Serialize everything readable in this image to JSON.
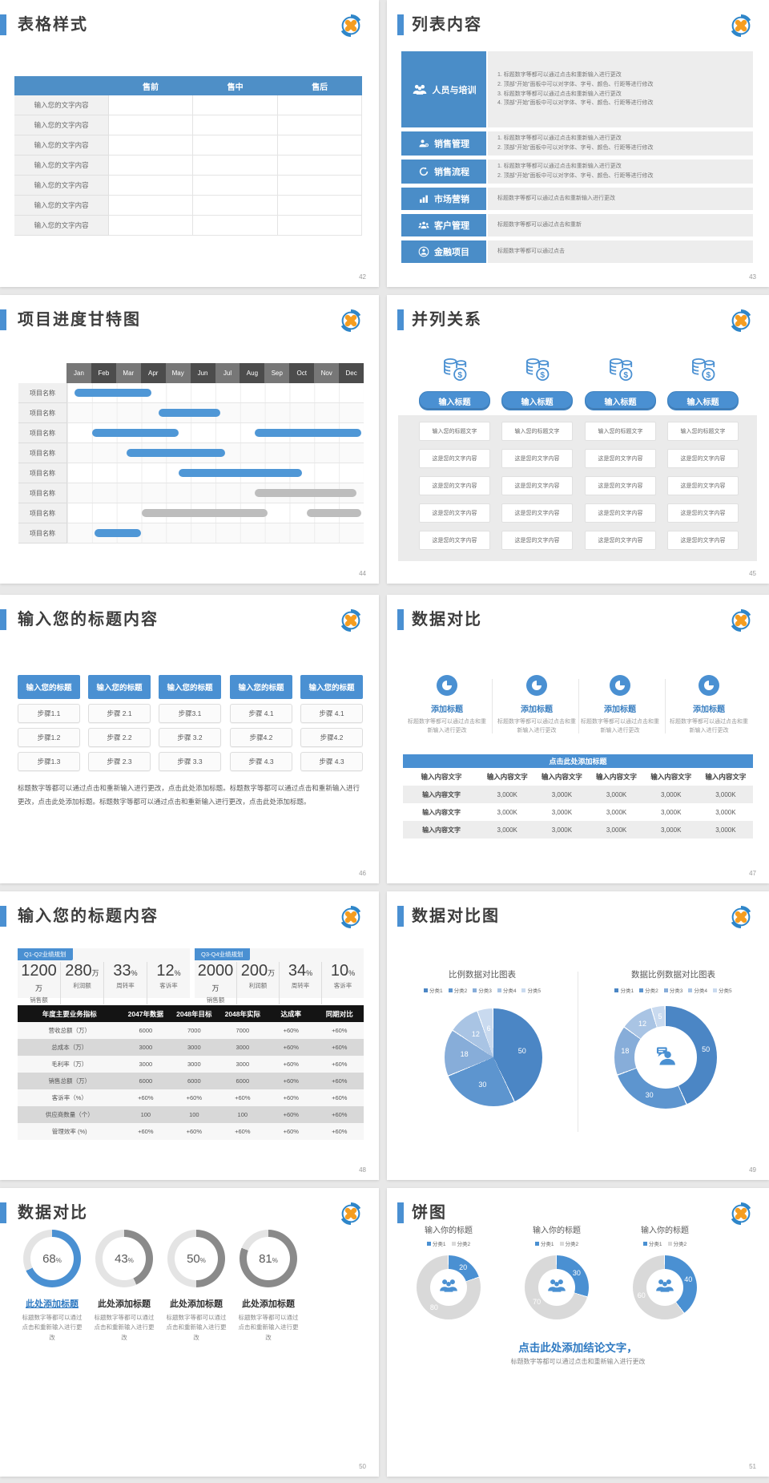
{
  "colors": {
    "accent": "#4a90d2",
    "table_header_blue": "#4e8fc7",
    "bar_blue": "#4f97d6",
    "bar_gray": "#bdbdbd",
    "gauge_gray": "#8a8a8a",
    "gauge_track": "#e4e4e4",
    "donut_gray": "#d9d9d9",
    "pie_palette": [
      "#4b86c5",
      "#5d95cf",
      "#87add9",
      "#a9c4e4",
      "#c9daef"
    ]
  },
  "slides": {
    "s42": {
      "title": "表格样式",
      "page": "42",
      "table": {
        "headers": [
          "",
          "售前",
          "售中",
          "售后"
        ],
        "row_label": "输入您的文字内容",
        "row_count": 7
      }
    },
    "s43": {
      "title": "列表内容",
      "page": "43",
      "items": [
        {
          "icon": "team-icon",
          "label": "人员与培训",
          "numbered": true,
          "lines": [
            "标题数字等都可以通过点击和重新输入进行更改",
            "顶部“开始”面板中可以对字体、字号、颜色、行距等进行修改",
            "标题数字等都可以通过点击和重新输入进行更改",
            "顶部“开始”面板中可以对字体、字号、颜色、行距等进行修改"
          ]
        },
        {
          "icon": "sales-management-icon",
          "label": "销售管理",
          "numbered": true,
          "lines": [
            "标题数字等都可以通过点击和重新输入进行更改",
            "顶部“开始”面板中可以对字体、字号、颜色、行距等进行修改"
          ]
        },
        {
          "icon": "sales-process-icon",
          "label": "销售流程",
          "numbered": true,
          "lines": [
            "标题数字等都可以通过点击和重新输入进行更改",
            "顶部“开始”面板中可以对字体、字号、颜色、行距等进行修改"
          ]
        },
        {
          "icon": "marketing-icon",
          "label": "市场营销",
          "numbered": false,
          "lines": [
            "标题数字等都可以通过点击和重新输入进行更改"
          ]
        },
        {
          "icon": "customers-icon",
          "label": "客户管理",
          "numbered": false,
          "lines": [
            "标题数字等都可以通过点击和重新"
          ]
        },
        {
          "icon": "finance-icon",
          "label": "金融项目",
          "numbered": false,
          "lines": [
            "标题数字等都可以通过点击"
          ]
        }
      ]
    },
    "s44": {
      "title": "项目进度甘特图",
      "page": "44",
      "gantt": {
        "months": [
          "Jan",
          "Feb",
          "Mar",
          "Apr",
          "May",
          "Jun",
          "Jul",
          "Aug",
          "Sep",
          "Oct",
          "Nov",
          "Dec"
        ],
        "row_label": "项目名称",
        "rows": [
          {
            "bars": [
              {
                "start": 0.3,
                "end": 3.4,
                "color": "blue"
              }
            ]
          },
          {
            "bars": [
              {
                "start": 3.7,
                "end": 6.2,
                "color": "blue"
              }
            ]
          },
          {
            "bars": [
              {
                "start": 1.0,
                "end": 4.5,
                "color": "blue"
              },
              {
                "start": 7.6,
                "end": 11.9,
                "color": "blue"
              }
            ]
          },
          {
            "bars": [
              {
                "start": 2.4,
                "end": 6.4,
                "color": "blue"
              }
            ]
          },
          {
            "bars": [
              {
                "start": 4.5,
                "end": 9.5,
                "color": "blue"
              }
            ]
          },
          {
            "bars": [
              {
                "start": 7.6,
                "end": 11.7,
                "color": "gray"
              }
            ]
          },
          {
            "bars": [
              {
                "start": 3.0,
                "end": 8.1,
                "color": "gray"
              },
              {
                "start": 9.7,
                "end": 11.9,
                "color": "gray"
              }
            ]
          },
          {
            "bars": [
              {
                "start": 1.1,
                "end": 3.0,
                "color": "blue"
              }
            ]
          }
        ]
      }
    },
    "s45": {
      "title": "并列关系",
      "page": "45",
      "column_count": 4,
      "column": {
        "icon": "coins-icon",
        "button": "输入标题",
        "boxes": [
          "输入您的标题文字",
          "这是您的文字内容",
          "这是您的文字内容",
          "这是您的文字内容",
          "这是您的文字内容"
        ]
      }
    },
    "s46": {
      "title": "输入您的标题内容",
      "page": "46",
      "header": "输入您的标题",
      "steps": [
        [
          "步骤1.1",
          "步骤1.2",
          "步骤1.3"
        ],
        [
          "步骤 2.1",
          "步骤 2.2",
          "步骤 2.3"
        ],
        [
          "步骤3.1",
          "步骤 3.2",
          "步骤 3.3"
        ],
        [
          "步骤 4.1",
          "步骤4.2",
          "步骤 4.3"
        ],
        [
          "步骤 4.1",
          "步骤4.2",
          "步骤 4.3"
        ]
      ],
      "paragraph": "标题数字等都可以通过点击和重新输入进行更改，点击此处添加标题。标题数字等都可以通过点击和重新输入进行更改，点击此处添加标题。标题数字等都可以通过点击和重新输入进行更改，点击此处添加标题。"
    },
    "s47": {
      "title": "数据对比",
      "page": "47",
      "card": {
        "icon": "pie-chart-icon",
        "title": "添加标题",
        "desc": "标题数字等都可以通过点击和重新输入进行更改",
        "count": 4
      },
      "bar": "点击此处添加标题",
      "table": {
        "headers": [
          "输入内容文字",
          "输入内容文字",
          "输入内容文字",
          "输入内容文字",
          "输入内容文字",
          "输入内容文字"
        ],
        "rows": [
          [
            "输入内容文字",
            "3,000K",
            "3,000K",
            "3,000K",
            "3,000K",
            "3,000K"
          ],
          [
            "输入内容文字",
            "3,000K",
            "3,000K",
            "3,000K",
            "3,000K",
            "3,000K"
          ],
          [
            "输入内容文字",
            "3,000K",
            "3,000K",
            "3,000K",
            "3,000K",
            "3,000K"
          ]
        ]
      }
    },
    "s48": {
      "title": "输入您的标题内容",
      "page": "48",
      "groups": [
        {
          "badge": "Q1-Q2业绩规划",
          "kpis": [
            {
              "value": "1200",
              "unit": "万",
              "label": "销售额"
            },
            {
              "value": "280",
              "unit": "万",
              "label": "利润额"
            },
            {
              "value": "33",
              "unit": "%",
              "label": "周转率"
            },
            {
              "value": "12",
              "unit": "%",
              "label": "客诉率"
            }
          ]
        },
        {
          "badge": "Q3-Q4业绩规划",
          "kpis": [
            {
              "value": "2000",
              "unit": "万",
              "label": "销售额"
            },
            {
              "value": "200",
              "unit": "万",
              "label": "利润额"
            },
            {
              "value": "34",
              "unit": "%",
              "label": "周转率"
            },
            {
              "value": "10",
              "unit": "%",
              "label": "客诉率"
            }
          ]
        }
      ],
      "table": {
        "headers": [
          "年度主要业务指标",
          "2047年数据",
          "2048年目标",
          "2048年实际",
          "达成率",
          "同期对比"
        ],
        "rows": [
          [
            "营收总额（万）",
            "6000",
            "7000",
            "7000",
            "+60%",
            "+60%"
          ],
          [
            "总成本（万）",
            "3000",
            "3000",
            "3000",
            "+60%",
            "+60%"
          ],
          [
            "毛利率（万）",
            "3000",
            "3000",
            "3000",
            "+60%",
            "+60%"
          ],
          [
            "销售总额（万）",
            "6000",
            "6000",
            "6000",
            "+60%",
            "+60%"
          ],
          [
            "客诉率（%）",
            "+60%",
            "+60%",
            "+60%",
            "+60%",
            "+60%"
          ],
          [
            "供应商数量（个）",
            "100",
            "100",
            "100",
            "+60%",
            "+60%"
          ],
          [
            "管理效率 (%)",
            "+60%",
            "+60%",
            "+60%",
            "+60%",
            "+60%"
          ]
        ]
      }
    },
    "s49": {
      "title": "数据对比图",
      "page": "49",
      "charts": [
        {
          "type": "pie",
          "title": "比例数据对比图表",
          "legend": [
            "分类1",
            "分类2",
            "分类3",
            "分类4",
            "分类5"
          ],
          "values": [
            50,
            30,
            18,
            12,
            6
          ],
          "labels": [
            "50",
            "30",
            "18",
            "12",
            "6"
          ]
        },
        {
          "type": "donut",
          "title": "数据比例数据对比图表",
          "legend": [
            "分类1",
            "分类2",
            "分类3",
            "分类4",
            "分类5"
          ],
          "values": [
            50,
            30,
            18,
            12,
            5
          ],
          "labels": [
            "50",
            "30",
            "18",
            "12",
            "5"
          ],
          "center_icon": "consultant-icon"
        }
      ]
    },
    "s50": {
      "title": "数据对比",
      "page": "50",
      "item_title": "此处添加标题",
      "item_desc": "标题数字等都可以通过点击和重新输入进行更改",
      "gauges": [
        {
          "percent": 68,
          "highlight": true
        },
        {
          "percent": 43,
          "highlight": false
        },
        {
          "percent": 50,
          "highlight": false
        },
        {
          "percent": 81,
          "highlight": false
        }
      ]
    },
    "s51": {
      "title": "饼图",
      "page": "51",
      "chart_title": "输入你的标题",
      "legend": [
        "分类1",
        "分类2"
      ],
      "donuts": [
        {
          "values": [
            20,
            80
          ],
          "labels": [
            "20",
            "80"
          ]
        },
        {
          "values": [
            30,
            70
          ],
          "labels": [
            "30",
            "70"
          ]
        },
        {
          "values": [
            40,
            60
          ],
          "labels": [
            "40",
            "60"
          ]
        }
      ],
      "center_icon": "team-icon",
      "conclusion": "点击此处添加结论文字，",
      "conclusion_sub": "标题数字等都可以通过点击和重新输入进行更改"
    }
  }
}
